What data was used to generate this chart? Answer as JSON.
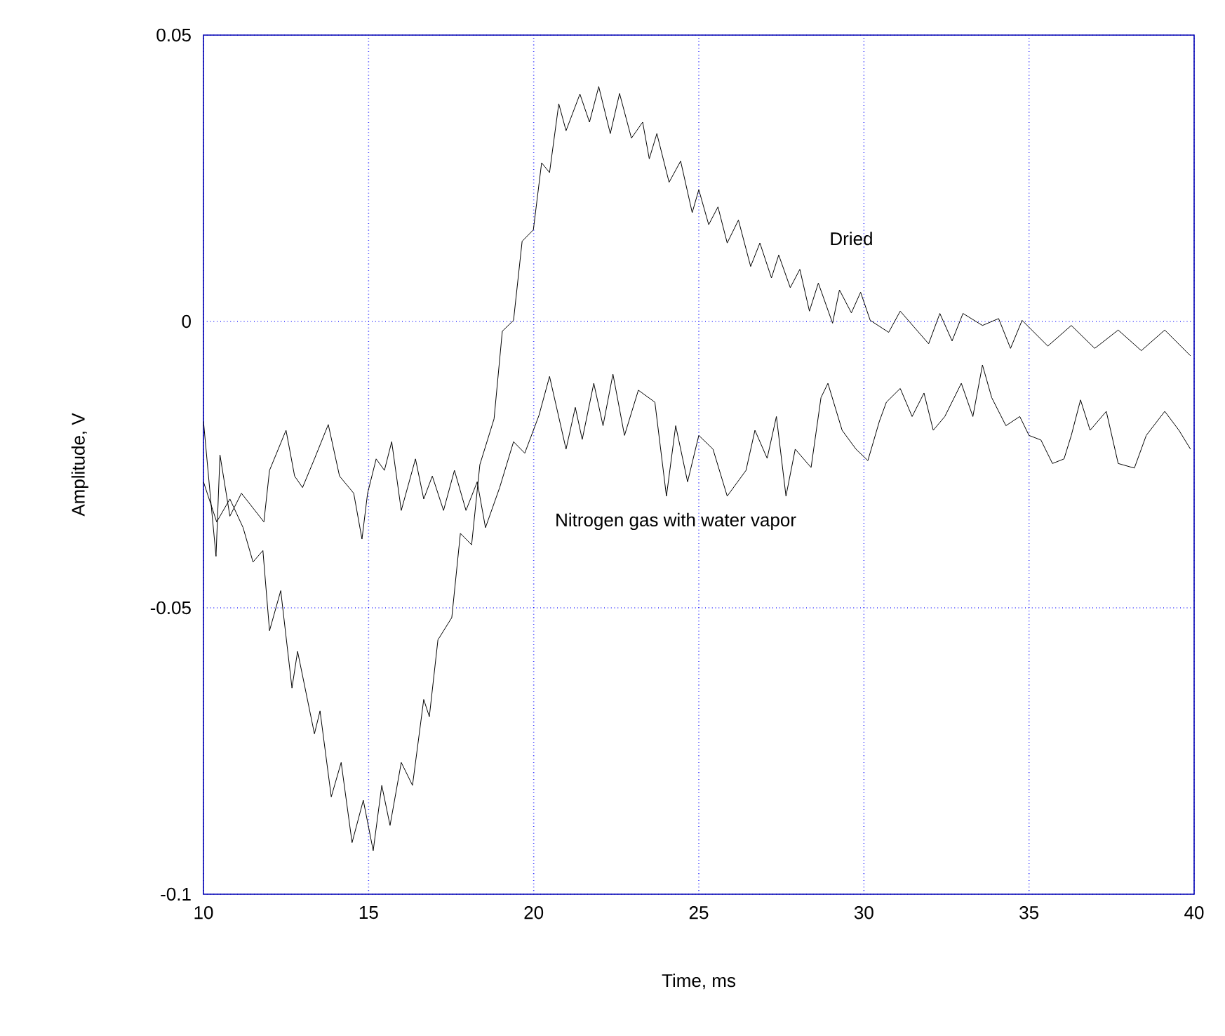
{
  "chart_data": {
    "type": "line",
    "xlabel": "Time, ms",
    "ylabel": "Amplitude, V",
    "xlim": [
      10,
      40
    ],
    "xticks": [
      10,
      15,
      20,
      25,
      30,
      35,
      40
    ],
    "ylim": [
      -0.1,
      0.05
    ],
    "yticks": [
      -0.1,
      -0.05,
      0,
      0.05
    ],
    "grid": true,
    "marker": "none",
    "line_style": "solid",
    "series": [
      {
        "name": "Dried",
        "color": "#000000",
        "x": [
          10,
          10.4,
          10.8,
          11.2,
          11.5,
          11.8,
          12.0,
          12.34,
          12.68,
          12.85,
          13.36,
          13.53,
          13.87,
          14.17,
          14.5,
          14.84,
          15.14,
          15.4,
          15.65,
          15.99,
          16.33,
          16.67,
          16.84,
          17.1,
          17.52,
          17.78,
          18.12,
          18.37,
          18.8,
          19.05,
          19.39,
          19.65,
          19.99,
          20.24,
          20.48,
          20.76,
          20.98,
          21.4,
          21.69,
          21.97,
          22.32,
          22.6,
          22.96,
          23.3,
          23.5,
          23.73,
          24.1,
          24.45,
          24.8,
          25.0,
          25.3,
          25.58,
          25.86,
          26.2,
          26.57,
          26.85,
          27.2,
          27.42,
          27.77,
          28.06,
          28.35,
          28.62,
          29.05,
          29.26,
          29.62,
          29.9,
          30.19,
          30.75,
          31.1,
          31.96,
          32.3,
          32.67,
          33.0,
          33.59,
          34.08,
          34.44,
          34.79,
          35.57,
          36.28,
          36.99,
          37.7,
          38.4,
          39.11,
          39.89
        ],
        "values": [
          -0.028,
          -0.035,
          -0.031,
          -0.036,
          -0.042,
          -0.04,
          -0.054,
          -0.047,
          -0.064,
          -0.0576,
          -0.072,
          -0.068,
          -0.083,
          -0.077,
          -0.091,
          -0.0836,
          -0.0924,
          -0.081,
          -0.088,
          -0.077,
          -0.081,
          -0.066,
          -0.069,
          -0.0556,
          -0.0517,
          -0.037,
          -0.039,
          -0.025,
          -0.017,
          -0.0017,
          0.0002,
          0.014,
          0.016,
          0.0277,
          0.026,
          0.038,
          0.0333,
          0.0397,
          0.0348,
          0.041,
          0.0328,
          0.0398,
          0.032,
          0.0348,
          0.0284,
          0.0328,
          0.0243,
          0.028,
          0.019,
          0.023,
          0.0169,
          0.02,
          0.0137,
          0.0177,
          0.0096,
          0.0137,
          0.0076,
          0.0116,
          0.0059,
          0.0091,
          0.0018,
          0.0067,
          -0.0003,
          0.0055,
          0.0015,
          0.0051,
          0.0002,
          -0.0019,
          0.0018,
          -0.0039,
          0.0014,
          -0.0034,
          0.0014,
          -0.0007,
          0.0005,
          -0.0047,
          0.0002,
          -0.0043,
          -0.0007,
          -0.0047,
          -0.0015,
          -0.0051,
          -0.0015,
          -0.006
        ]
      },
      {
        "name": "Nitrogen gas with water vapor",
        "color": "#000000",
        "x": [
          10,
          10.2,
          10.38,
          10.5,
          10.8,
          11.15,
          11.83,
          12.0,
          12.5,
          12.76,
          13.0,
          13.36,
          13.78,
          14.12,
          14.55,
          14.8,
          14.97,
          15.23,
          15.48,
          15.7,
          15.99,
          16.42,
          16.67,
          16.93,
          17.27,
          17.6,
          17.95,
          18.29,
          18.54,
          18.97,
          19.39,
          19.73,
          20.16,
          20.48,
          20.98,
          21.26,
          21.47,
          21.82,
          22.1,
          22.4,
          22.75,
          23.17,
          23.67,
          24.02,
          24.3,
          24.66,
          25.0,
          25.43,
          25.86,
          26.43,
          26.7,
          27.07,
          27.35,
          27.64,
          27.92,
          28.4,
          28.7,
          28.91,
          29.34,
          29.76,
          30.12,
          30.47,
          30.68,
          31.1,
          31.46,
          31.82,
          32.1,
          32.45,
          32.95,
          33.3,
          33.59,
          33.87,
          34.3,
          34.72,
          35.0,
          35.36,
          35.71,
          36.06,
          36.28,
          36.56,
          36.85,
          37.34,
          37.7,
          38.19,
          38.55,
          39.11,
          39.54,
          39.89
        ],
        "values": [
          -0.0174,
          -0.03,
          -0.041,
          -0.0233,
          -0.034,
          -0.03,
          -0.035,
          -0.026,
          -0.019,
          -0.027,
          -0.029,
          -0.024,
          -0.018,
          -0.027,
          -0.03,
          -0.038,
          -0.03,
          -0.024,
          -0.026,
          -0.021,
          -0.033,
          -0.024,
          -0.031,
          -0.027,
          -0.033,
          -0.026,
          -0.033,
          -0.028,
          -0.036,
          -0.029,
          -0.021,
          -0.023,
          -0.0164,
          -0.0096,
          -0.0223,
          -0.015,
          -0.0206,
          -0.0108,
          -0.0182,
          -0.0092,
          -0.0199,
          -0.012,
          -0.0141,
          -0.0305,
          -0.0182,
          -0.028,
          -0.0199,
          -0.0223,
          -0.0305,
          -0.026,
          -0.019,
          -0.0239,
          -0.0166,
          -0.0305,
          -0.0223,
          -0.0255,
          -0.0133,
          -0.0108,
          -0.019,
          -0.0223,
          -0.0243,
          -0.0174,
          -0.0141,
          -0.0117,
          -0.0166,
          -0.0125,
          -0.019,
          -0.0166,
          -0.0108,
          -0.0166,
          -0.0076,
          -0.0133,
          -0.0182,
          -0.0166,
          -0.0199,
          -0.0207,
          -0.0248,
          -0.024,
          -0.0199,
          -0.0137,
          -0.019,
          -0.0157,
          -0.0248,
          -0.0256,
          -0.0199,
          -0.0157,
          -0.019,
          -0.0223
        ]
      }
    ]
  }
}
